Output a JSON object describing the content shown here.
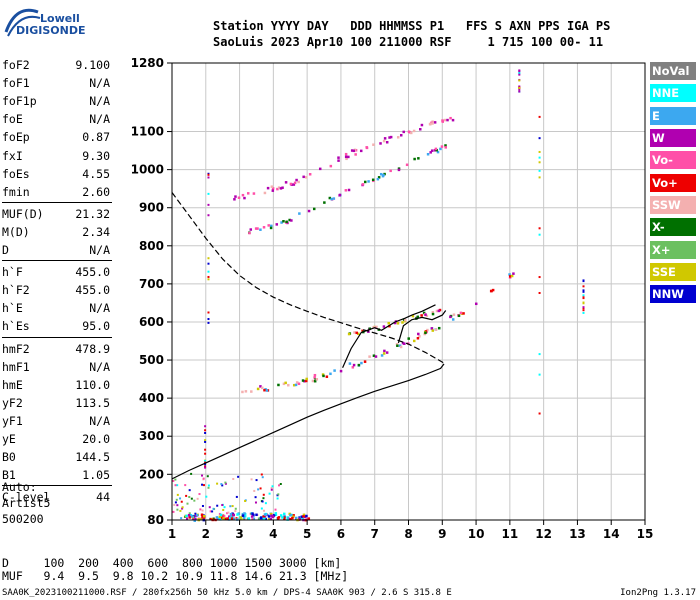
{
  "logo": {
    "line1": "Lowell",
    "line2": "DIGISONDE"
  },
  "header": {
    "line1": "Station YYYY DAY   DDD HHMMSS P1   FFS S AXN PPS IGA PS",
    "line2": "SaoLuis 2023 Apr10 100 211000 RSF     1 715 100 00- 11"
  },
  "params": [
    {
      "name": "foF2",
      "value": "9.100"
    },
    {
      "name": "foF1",
      "value": "N/A"
    },
    {
      "name": "foF1p",
      "value": "N/A"
    },
    {
      "name": "foE",
      "value": "N/A"
    },
    {
      "name": "foEp",
      "value": "0.87"
    },
    {
      "name": "fxI",
      "value": "9.30"
    },
    {
      "name": "foEs",
      "value": "4.55"
    },
    {
      "name": "fmin",
      "value": "2.60"
    },
    {
      "name": "MUF(D)",
      "value": "21.32"
    },
    {
      "name": "M(D)",
      "value": "2.34"
    },
    {
      "name": "D",
      "value": "N/A"
    },
    {
      "name": "h`F",
      "value": "455.0"
    },
    {
      "name": "h`F2",
      "value": "455.0"
    },
    {
      "name": "h`E",
      "value": "N/A"
    },
    {
      "name": "h`Es",
      "value": "95.0"
    },
    {
      "name": "hmF2",
      "value": "478.9"
    },
    {
      "name": "hmF1",
      "value": "N/A"
    },
    {
      "name": "hmE",
      "value": "110.0"
    },
    {
      "name": "yF2",
      "value": "113.5"
    },
    {
      "name": "yF1",
      "value": "N/A"
    },
    {
      "name": "yE",
      "value": "20.0"
    },
    {
      "name": "B0",
      "value": "144.5"
    },
    {
      "name": "B1",
      "value": "1.05"
    },
    {
      "name": "C-level",
      "value": "44"
    }
  ],
  "auto": {
    "line1": "Auto:",
    "line2": "Artist5",
    "line3": "500200"
  },
  "muf_table": {
    "line1": "D     100  200  400  600  800 1000 1500 3000 [km]",
    "line2": "MUF   9.4  9.5  9.8 10.2 10.9 11.8 14.6 21.3 [MHz]"
  },
  "footer": "SAA0K_2023100211000.RSF / 280fx256h 50 kHz 5.0 km / DPS-4 SAA0K 903 / 2.6 S 315.8 E",
  "version": "Ion2Png 1.3.17",
  "legend": [
    {
      "label": "NoVal",
      "color": "#808080"
    },
    {
      "label": "NNE",
      "color": "#00ffff"
    },
    {
      "label": "E",
      "color": "#3ca8f0"
    },
    {
      "label": "W",
      "color": "#b000b0"
    },
    {
      "label": "Vo-",
      "color": "#ff4fa8"
    },
    {
      "label": "Vo+",
      "color": "#ee0000"
    },
    {
      "label": "SSW",
      "color": "#f4b0b0"
    },
    {
      "label": "X-",
      "color": "#007000"
    },
    {
      "label": "X+",
      "color": "#6cc060"
    },
    {
      "label": "SSE",
      "color": "#d0c800"
    },
    {
      "label": "NNW",
      "color": "#0000d0"
    }
  ],
  "chart_data": {
    "type": "scatter",
    "xlabel": "",
    "ylabel": "",
    "xlim": [
      1,
      15
    ],
    "ylim": [
      80,
      1280
    ],
    "x_ticks": [
      1,
      2,
      3,
      4,
      5,
      6,
      7,
      8,
      9,
      10,
      11,
      12,
      13,
      14,
      15
    ],
    "y_ticks": [
      80,
      200,
      300,
      400,
      500,
      600,
      700,
      800,
      900,
      1000,
      1100,
      1280
    ],
    "grid": true,
    "series": [
      {
        "name": "",
        "kind": "profile",
        "points": [
          [
            1.0,
            188
          ],
          [
            1.5,
            210
          ],
          [
            2.0,
            230
          ],
          [
            2.5,
            250
          ],
          [
            3.0,
            270
          ],
          [
            3.5,
            290
          ],
          [
            4.0,
            310
          ],
          [
            4.5,
            330
          ],
          [
            5.0,
            350
          ],
          [
            5.5,
            368
          ],
          [
            6.0,
            385
          ],
          [
            6.5,
            402
          ],
          [
            7.0,
            418
          ],
          [
            7.5,
            432
          ],
          [
            8.0,
            446
          ],
          [
            8.5,
            462
          ],
          [
            8.95,
            478
          ],
          [
            9.05,
            490
          ]
        ]
      },
      {
        "name": "",
        "kind": "dashed_profile",
        "points": [
          [
            1.0,
            940
          ],
          [
            1.5,
            880
          ],
          [
            2.0,
            820
          ],
          [
            2.5,
            765
          ],
          [
            3.0,
            722
          ],
          [
            3.5,
            690
          ],
          [
            4.0,
            665
          ],
          [
            4.5,
            645
          ],
          [
            5.0,
            628
          ],
          [
            5.5,
            612
          ],
          [
            6.0,
            598
          ],
          [
            6.5,
            584
          ],
          [
            7.0,
            571
          ],
          [
            7.5,
            558
          ],
          [
            8.0,
            542
          ],
          [
            8.5,
            520
          ],
          [
            9.05,
            492
          ]
        ]
      },
      {
        "name": "",
        "kind": "o_trace_fit",
        "points": [
          [
            6.05,
            480
          ],
          [
            6.3,
            530
          ],
          [
            6.6,
            572
          ],
          [
            7.0,
            585
          ],
          [
            7.2,
            578
          ],
          [
            7.6,
            600
          ],
          [
            7.9,
            610
          ],
          [
            8.1,
            618
          ],
          [
            8.4,
            628
          ],
          [
            8.8,
            645
          ]
        ]
      },
      {
        "name": "",
        "kind": "o_trace_fit_low",
        "points": [
          [
            7.7,
            545
          ],
          [
            7.85,
            590
          ],
          [
            8.1,
            606
          ],
          [
            8.4,
            612
          ],
          [
            8.7,
            606
          ],
          [
            9.0,
            618
          ],
          [
            9.1,
            630
          ]
        ]
      },
      {
        "name": "",
        "kind": "echo_o_lower",
        "points": [
          [
            2.8,
            416
          ],
          [
            3.2,
            420
          ],
          [
            3.6,
            428
          ],
          [
            4.0,
            434
          ],
          [
            4.4,
            440
          ],
          [
            4.8,
            448
          ],
          [
            5.2,
            456
          ],
          [
            5.6,
            466
          ],
          [
            6.0,
            478
          ],
          [
            6.4,
            492
          ],
          [
            6.8,
            506
          ],
          [
            7.2,
            522
          ],
          [
            7.6,
            538
          ],
          [
            8.0,
            554
          ],
          [
            8.4,
            572
          ],
          [
            8.8,
            590
          ],
          [
            9.2,
            610
          ],
          [
            9.6,
            628
          ],
          [
            10.0,
            650
          ],
          [
            10.4,
            676
          ],
          [
            10.8,
            706
          ],
          [
            11.2,
            748
          ]
        ]
      },
      {
        "name": "",
        "kind": "echo_x_upper",
        "points": [
          [
            6.2,
            570
          ],
          [
            6.6,
            578
          ],
          [
            7.0,
            586
          ],
          [
            7.4,
            596
          ],
          [
            7.8,
            606
          ],
          [
            8.2,
            616
          ],
          [
            8.6,
            626
          ],
          [
            9.0,
            636
          ]
        ]
      },
      {
        "name": "",
        "kind": "echo_2hop_upper",
        "points": [
          [
            2.8,
            925
          ],
          [
            3.4,
            940
          ],
          [
            4.0,
            955
          ],
          [
            4.6,
            970
          ],
          [
            5.2,
            995
          ],
          [
            5.8,
            1025
          ],
          [
            6.4,
            1050
          ],
          [
            7.0,
            1070
          ],
          [
            7.6,
            1090
          ],
          [
            8.2,
            1110
          ],
          [
            8.8,
            1130
          ],
          [
            9.3,
            1140
          ]
        ]
      },
      {
        "name": "",
        "kind": "echo_2hop_lower",
        "points": [
          [
            3.2,
            840
          ],
          [
            3.8,
            852
          ],
          [
            4.4,
            868
          ],
          [
            5.0,
            895
          ],
          [
            5.6,
            925
          ],
          [
            6.2,
            950
          ],
          [
            6.8,
            975
          ],
          [
            7.4,
            995
          ],
          [
            8.0,
            1020
          ],
          [
            8.6,
            1045
          ],
          [
            9.2,
            1070
          ]
        ]
      },
      {
        "name": "",
        "kind": "es_low",
        "points": [
          [
            1.2,
            88
          ],
          [
            2.0,
            90
          ],
          [
            2.8,
            92
          ],
          [
            3.6,
            94
          ],
          [
            4.4,
            92
          ],
          [
            5.0,
            90
          ]
        ]
      }
    ]
  }
}
